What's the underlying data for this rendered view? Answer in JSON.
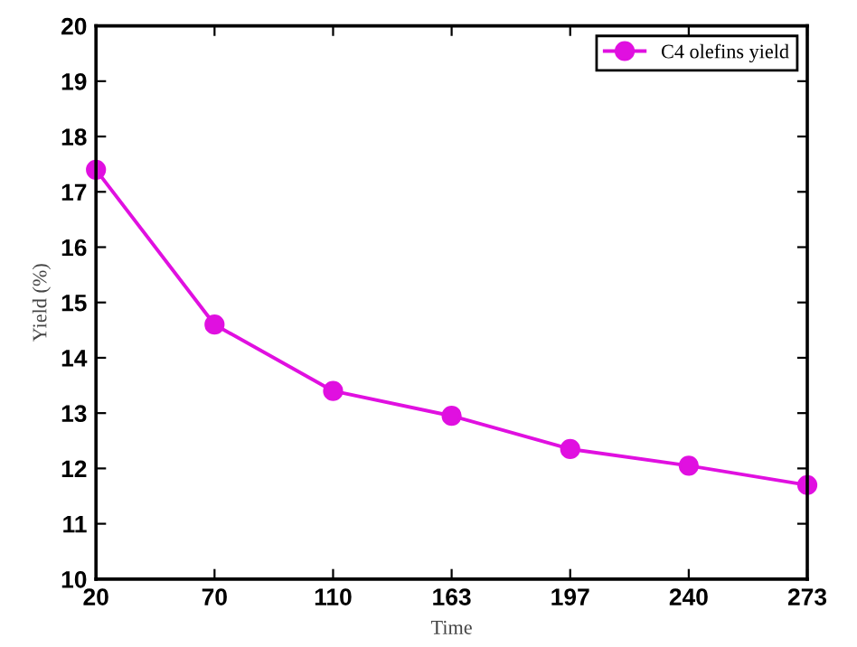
{
  "chart_data": {
    "type": "line",
    "xlabel": "Time",
    "ylabel": "Yield (%)",
    "categories": [
      "20",
      "70",
      "110",
      "163",
      "197",
      "240",
      "273"
    ],
    "series": [
      {
        "name": "C4 olefins yield",
        "color": "#e010e0",
        "values": [
          17.4,
          14.6,
          13.4,
          12.95,
          12.35,
          12.05,
          11.7
        ]
      }
    ],
    "ylim": [
      10,
      20
    ],
    "yticks": [
      10,
      11,
      12,
      13,
      14,
      15,
      16,
      17,
      18,
      19,
      20
    ],
    "marker": "circle",
    "line_style": "solid",
    "legend": "top right",
    "grid": false
  }
}
